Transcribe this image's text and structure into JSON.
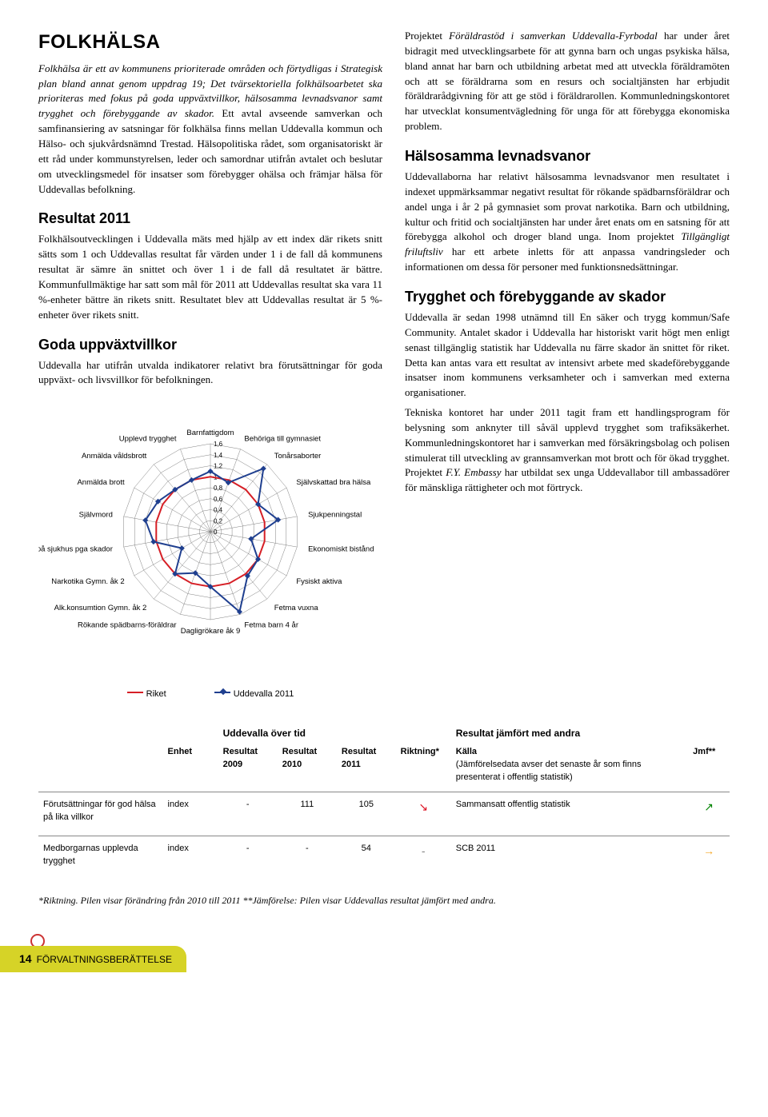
{
  "left": {
    "h1": "FOLKHÄLSA",
    "intro": "Folkhälsa är ett av kommunens prioriterade områden och förtydligas i Strategisk plan bland annat genom uppdrag 19; Det tvärsektoriella folkhälsoarbetet ska prioriteras med fokus på goda uppväxtvillkor, hälsosamma levnadsvanor samt trygghet och förebyggande av skador.",
    "intro_cont": " Ett avtal avseende samverkan och samfinansiering av satsningar för folkhälsa finns mellan Uddevalla kommun och Hälso- och sjukvårdsnämnd Trestad. Hälsopolitiska rådet, som organisatoriskt är ett råd under kommunstyrelsen, leder och samordnar utifrån avtalet och beslutar om utvecklingsmedel för insatser som förebygger ohälsa och främjar hälsa för Uddevallas befolkning.",
    "h2a": "Resultat 2011",
    "p2": "Folkhälsoutvecklingen i Uddevalla mäts med hjälp av ett index där rikets snitt sätts som 1 och Uddevallas resultat får värden under 1 i de fall då kommunens resultat är sämre än snittet och över 1 i de fall då resultatet är bättre. Kommunfullmäktige har satt som mål för 2011 att Uddevallas resultat ska vara 11 %-enheter bättre än rikets snitt. Resultatet blev att Uddevallas resultat är 5 %-enheter över rikets snitt.",
    "h2b": "Goda uppväxtvillkor",
    "p3": "Uddevalla har utifrån utvalda indikatorer relativt bra förutsättningar för goda uppväxt- och livsvillkor för befolkningen."
  },
  "right": {
    "p1a": "Projektet ",
    "p1b": "Föräldrastöd i samverkan Uddevalla-Fyrbodal",
    "p1c": " har under året bidragit med utvecklingsarbete för att gynna barn och ungas psykiska hälsa, bland annat har barn och utbildning arbetat med att utveckla föräldramöten och att se föräldrarna som en resurs och socialtjänsten har erbjudit föräldrarådgivning för att ge stöd i föräldrarollen. Kommunledningskontoret har utvecklat konsumentvägledning för unga för att förebygga ekonomiska problem.",
    "h2a": "Hälsosamma levnadsvanor",
    "p2a": "Uddevallaborna har relativt hälsosamma levnadsvanor men resultatet i indexet uppmärksammar negativt resultat för rökande spädbarnsföräldrar och andel unga i år 2 på gymnasiet som provat narkotika. Barn och utbildning, kultur och fritid och socialtjänsten har under året enats om en satsning för att förebygga alkohol och droger bland unga. Inom projektet ",
    "p2b": "Tillgängligt friluftsliv",
    "p2c": " har ett arbete inletts för att anpassa vandringsleder och informationen om dessa för personer med funktionsnedsättningar.",
    "h2b": "Trygghet och förebyggande av skador",
    "p3": "Uddevalla är sedan 1998 utnämnd till En säker och trygg kommun/Safe Community. Antalet skador i Uddevalla har historiskt varit högt men enligt senast tillgänglig statistik har Uddevalla nu färre skador än snittet för riket. Detta kan antas vara ett resultat av intensivt arbete med skadeförebyggande insatser inom kommunens verksamheter och i samverkan med externa organisationer.",
    "p4a": "Tekniska kontoret har under 2011 tagit fram ett handlingsprogram för belysning som anknyter till såväl upplevd trygghet som trafiksäkerhet. Kommunledningskontoret har i samverkan med försäkringsbolag och polisen stimulerat till utveckling av grannsamverkan mot brott och för ökad trygghet. Projektet ",
    "p4b": "F.Y. Embassy",
    "p4c": " har utbildat sex unga Uddevallabor till ambassadörer för mänskliga rättigheter och mot förtryck."
  },
  "chart": {
    "max": 1.6,
    "step": 0.2,
    "ticks": [
      "0",
      "0,2",
      "0,4",
      "0,6",
      "0,8",
      "1",
      "1,2",
      "1,4",
      "1,6"
    ],
    "axes": [
      "Barnfattigdom",
      "Behöriga till gymnasiet",
      "Tonårsaborter",
      "Självskattad bra hälsa",
      "Sjukpenningstal",
      "Ekonomiskt bistånd",
      "Fysiskt aktiva",
      "Fetma vuxna",
      "Fetma barn 4 år",
      "Dagligrökare åk 9",
      "Rökande spädbarns-föräldrar",
      "Alk.konsumtion Gymn. åk 2",
      "Narkotika Gymn. åk 2",
      "agda på sjukhus pga skador",
      "Självmord",
      "Anmälda brott",
      "Anmälda våldsbrott",
      "Upplevd trygghet"
    ],
    "riket_color": "#d61f26",
    "udd_color": "#1f3f8f",
    "grid_color": "#808080",
    "riket": [
      1,
      1,
      1,
      1,
      1,
      1,
      1,
      1,
      1,
      1,
      1,
      1,
      1,
      1,
      1,
      1,
      1,
      1
    ],
    "uddevalla": [
      1.1,
      0.95,
      1.5,
      1.0,
      1.25,
      0.75,
      1.0,
      1.05,
      1.55,
      1.0,
      0.8,
      1.0,
      0.6,
      1.05,
      1.2,
      1.1,
      1.0,
      1.0
    ],
    "legend": {
      "a": "Riket",
      "b": "Uddevalla 2011"
    }
  },
  "table": {
    "span1": "Uddevalla över tid",
    "span2": "Resultat jämfört med andra",
    "heads": [
      "",
      "Enhet",
      "Resultat 2009",
      "Resultat 2010",
      "Resultat 2011",
      "Riktning*",
      "Källa",
      "Jmf**"
    ],
    "kalla_sub": "(Jämförelsedata avser det senaste år som finns presenterat i offentlig statistik)",
    "rows": [
      {
        "label": "Förutsättningar för god hälsa på lika villkor",
        "enhet": "index",
        "r09": "-",
        "r10": "111",
        "r11": "105",
        "dir": "↘",
        "dir_cls": "arr-down",
        "kalla": "Sammansatt offentlig statistik",
        "jmf": "↗",
        "jmf_cls": "arr-up"
      },
      {
        "label": "Medborgarnas upplevda trygghet",
        "enhet": "index",
        "r09": "-",
        "r10": "-",
        "r11": "54",
        "dir": "-",
        "dir_cls": "arr-gray",
        "kalla": "SCB 2011",
        "jmf": "→",
        "jmf_cls": "arr-flat"
      }
    ]
  },
  "footnote": "*Riktning. Pilen visar förändring från 2010 till 2011 **Jämförelse: Pilen visar Uddevallas resultat jämfört med andra.",
  "footer": {
    "page": "14",
    "section": "FÖRVALTNINGSBERÄTTELSE"
  }
}
